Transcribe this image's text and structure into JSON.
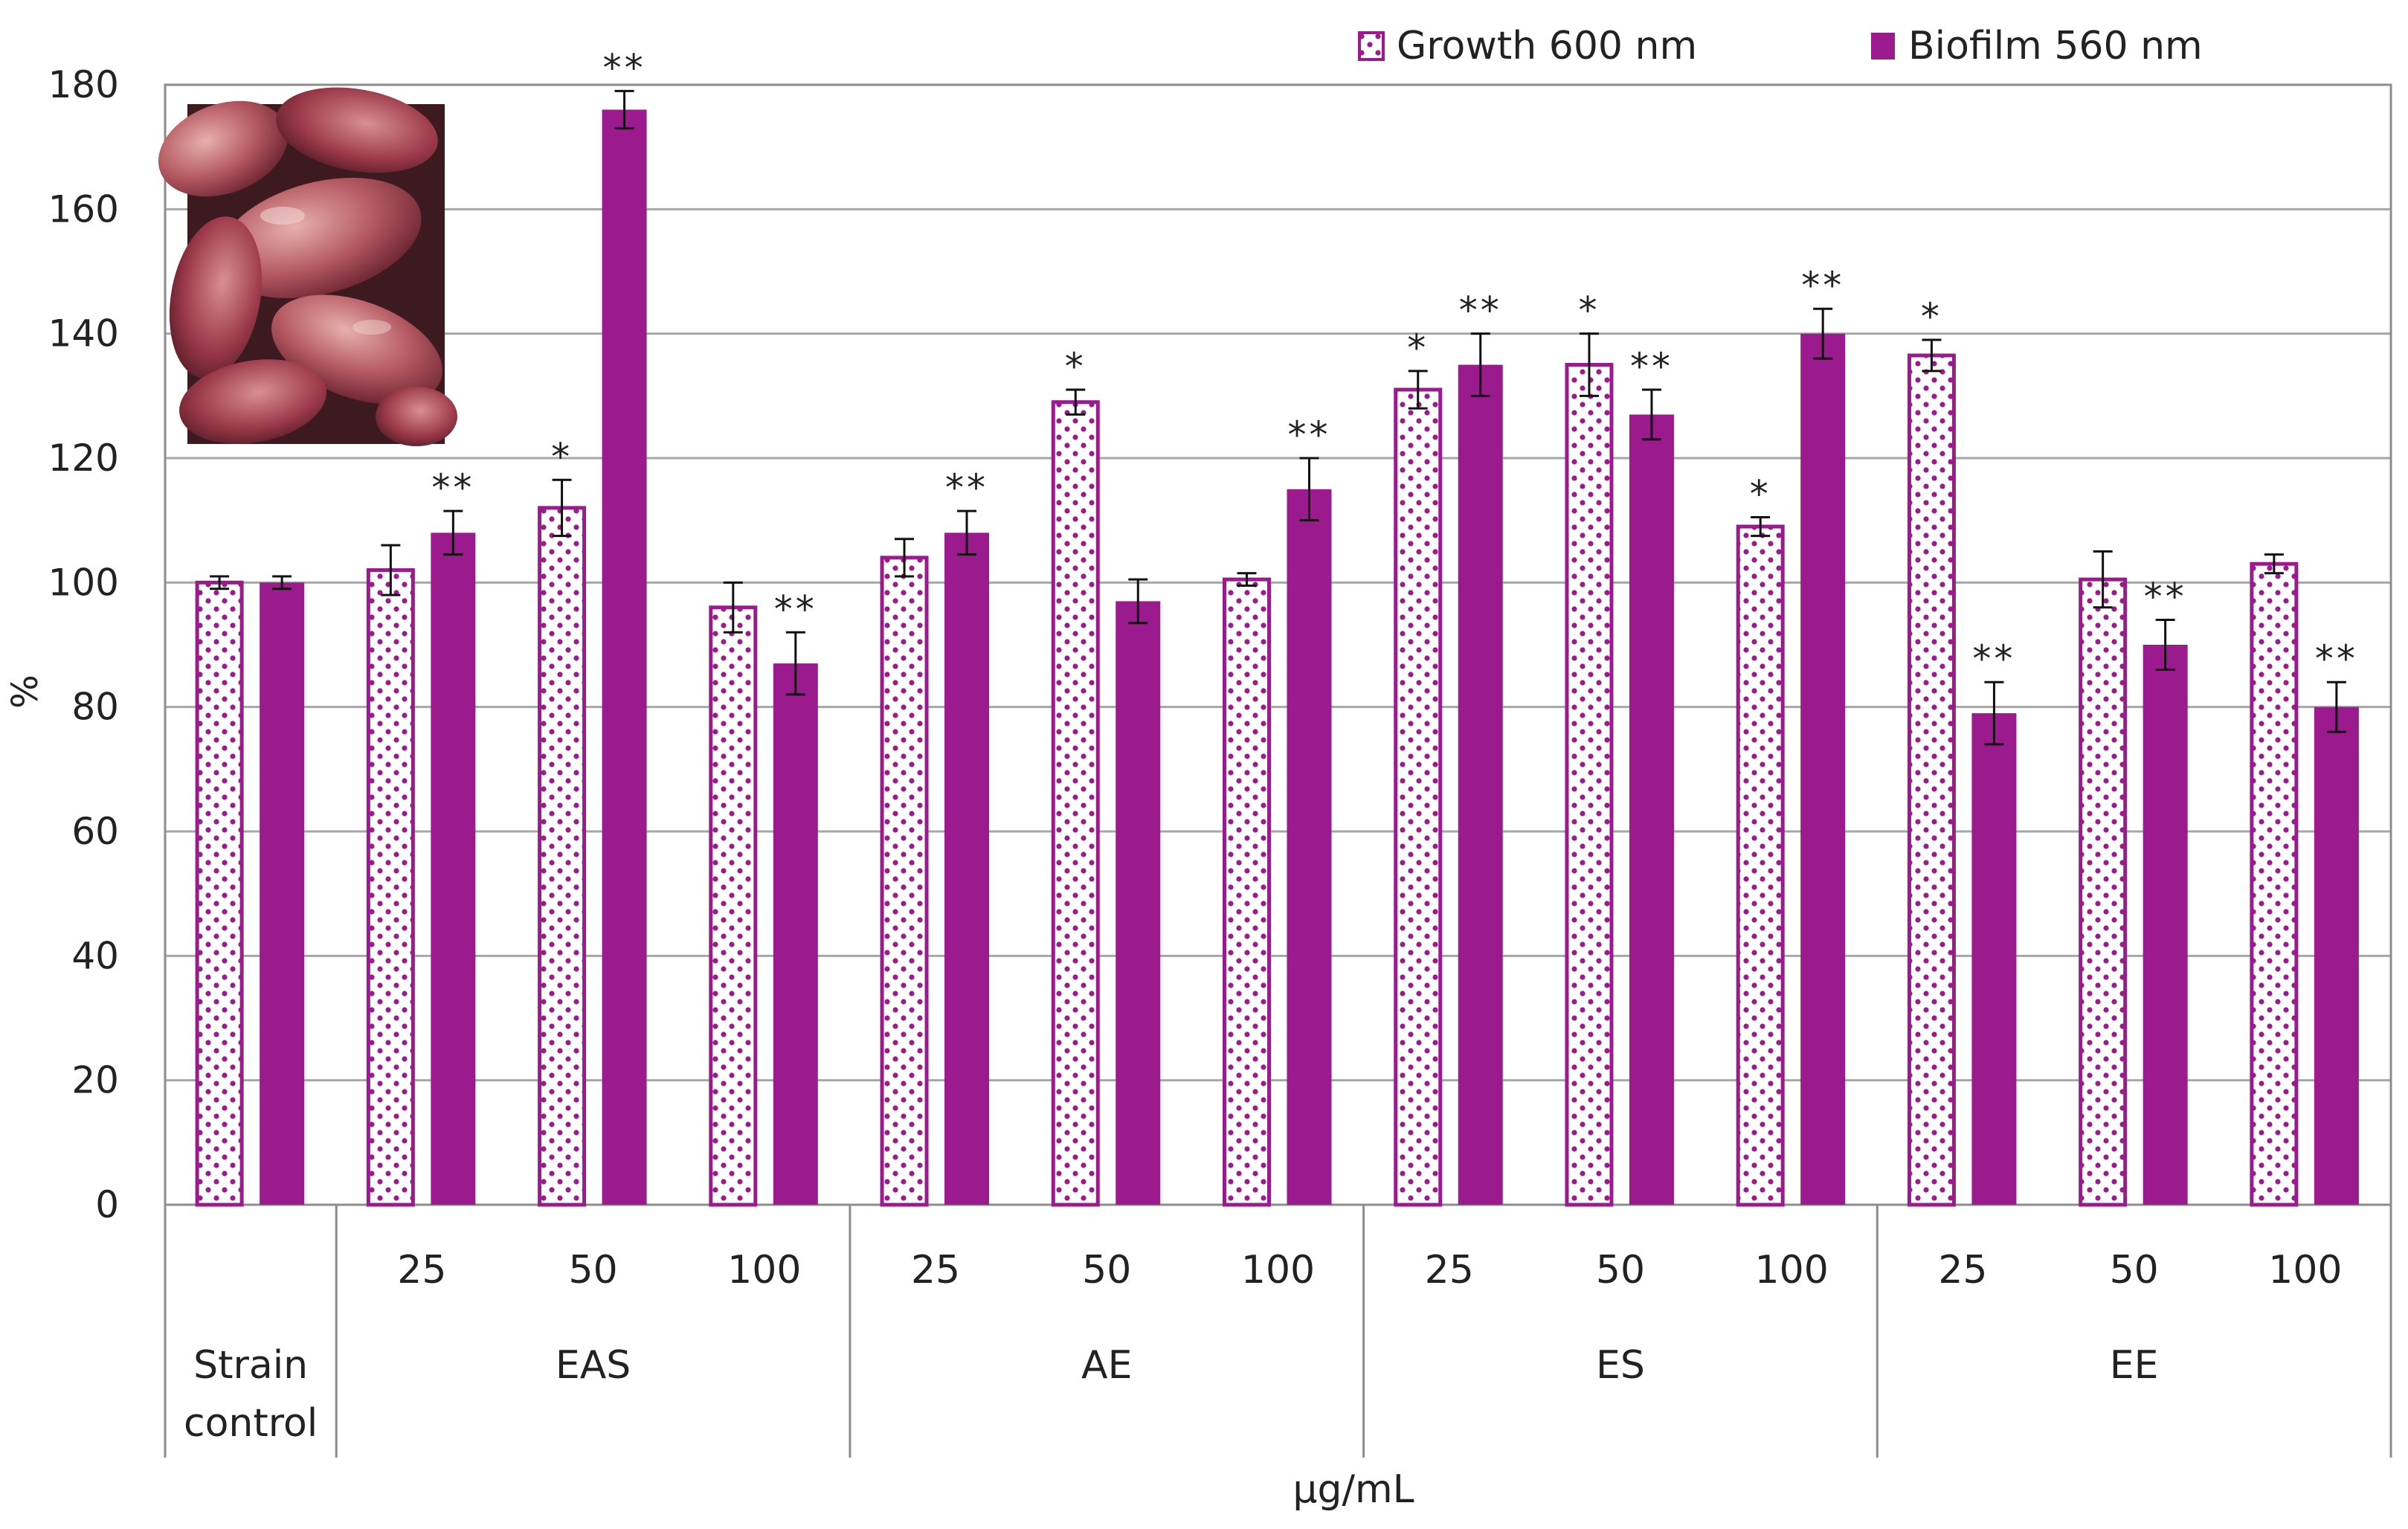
{
  "chart_data": {
    "type": "bar",
    "title": "",
    "ylabel": "%",
    "xlabel": "µg/mL",
    "ylim": [
      0,
      180
    ],
    "yticks": [
      0,
      20,
      40,
      60,
      80,
      100,
      120,
      140,
      160,
      180
    ],
    "grid": true,
    "legend_position": "top-right",
    "groups": [
      {
        "label": "Strain control",
        "label_lines": [
          "Strain",
          "control"
        ],
        "concentrations": [
          ""
        ]
      },
      {
        "label": "EAS",
        "label_lines": [
          "EAS"
        ],
        "concentrations": [
          "25",
          "50",
          "100"
        ]
      },
      {
        "label": "AE",
        "label_lines": [
          "AE"
        ],
        "concentrations": [
          "25",
          "50",
          "100"
        ]
      },
      {
        "label": "ES",
        "label_lines": [
          "ES"
        ],
        "concentrations": [
          "25",
          "50",
          "100"
        ]
      },
      {
        "label": "EE",
        "label_lines": [
          "EE"
        ],
        "concentrations": [
          "25",
          "50",
          "100"
        ]
      }
    ],
    "series": [
      {
        "name": "Growth 600 nm",
        "style": "dotted",
        "color": "#9B1B8E",
        "values": [
          100,
          102,
          112,
          96,
          104,
          129,
          100.5,
          131,
          135,
          109,
          136.5,
          100.5,
          103
        ],
        "errors": [
          1,
          4,
          4.5,
          4,
          3,
          2,
          1,
          3,
          5,
          1.5,
          2.5,
          4.5,
          1.5
        ],
        "annotations": [
          "",
          "",
          "*",
          "",
          "",
          "*",
          "",
          "*",
          "*",
          "*",
          "*",
          "",
          ""
        ]
      },
      {
        "name": "Biofilm 560 nm",
        "style": "solid",
        "color": "#9B1B8E",
        "values": [
          100,
          108,
          176,
          87,
          108,
          97,
          115,
          135,
          127,
          140,
          79,
          90,
          80
        ],
        "errors": [
          1,
          3.5,
          3,
          5,
          3.5,
          3.5,
          5,
          5,
          4,
          4,
          5,
          4,
          4
        ],
        "annotations": [
          "",
          "**",
          "**",
          "**",
          "**",
          "",
          "**",
          "**",
          "**",
          "**",
          "**",
          "**",
          "**"
        ]
      }
    ]
  },
  "inset_image": {
    "name": "red-tubers-photo"
  }
}
